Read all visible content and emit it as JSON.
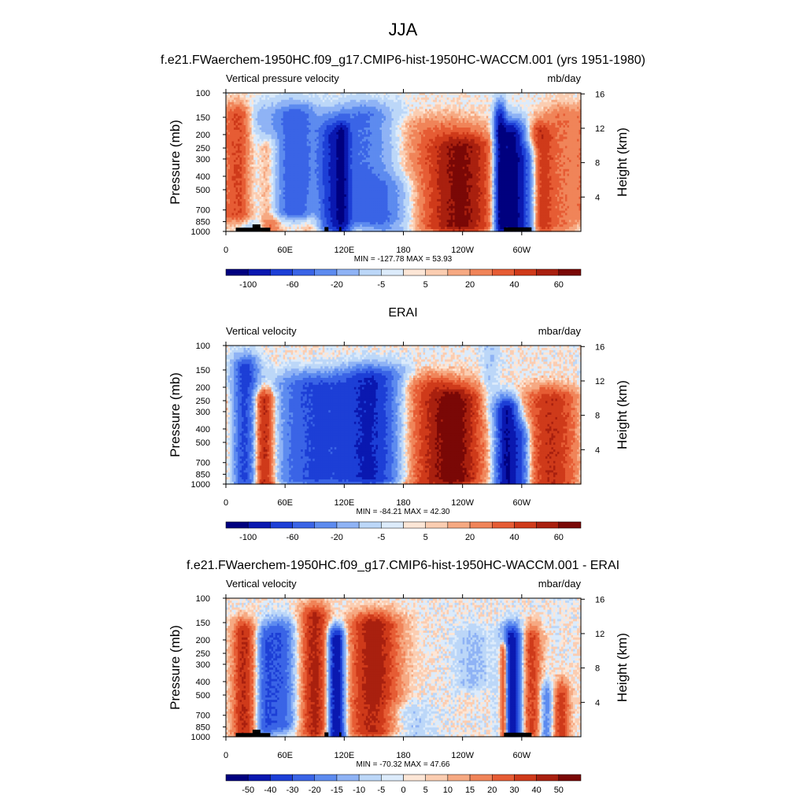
{
  "figure": {
    "title": "JJA",
    "colormap": [
      "#00007f",
      "#0a18b0",
      "#1d3fd6",
      "#3a64e6",
      "#5d8bef",
      "#8fb3f5",
      "#bcd7f8",
      "#dcebfb",
      "#fde6d6",
      "#fbcdb1",
      "#f6a982",
      "#f08459",
      "#e65c34",
      "#cf3a1a",
      "#a9200f",
      "#7a0806"
    ]
  },
  "chart_data": [
    {
      "type": "heatmap",
      "title": "f.e21.FWaerchem-1950HC.f09_g17.CMIP6-hist-1950HC-WACCM.001 (yrs 1951-1980)",
      "variable": "Vertical pressure velocity",
      "units": "mb/day",
      "ylabel": "Pressure (mb)",
      "y2label": "Height (km)",
      "stats": "MIN = -127.78  MAX =  53.93",
      "min": -127.78,
      "max": 53.93,
      "colorbar_labels": [
        "-100",
        "-60",
        "-20",
        "-5",
        "5",
        "20",
        "40",
        "60"
      ],
      "topography": true,
      "seed": 3,
      "features": [
        {
          "lon": 15,
          "pmin": 150,
          "pmax": 750,
          "w": 12,
          "a": 28
        },
        {
          "lon": 32,
          "pmin": 150,
          "pmax": 1000,
          "w": 10,
          "a": -20
        },
        {
          "lon": 42,
          "pmin": 250,
          "pmax": 950,
          "w": 9,
          "a": 26
        },
        {
          "lon": 70,
          "pmin": 150,
          "pmax": 700,
          "w": 16,
          "a": -55
        },
        {
          "lon": 105,
          "pmin": 200,
          "pmax": 900,
          "w": 8,
          "a": -55
        },
        {
          "lon": 118,
          "pmin": 200,
          "pmax": 950,
          "w": 6,
          "a": -70
        },
        {
          "lon": 140,
          "pmin": 150,
          "pmax": 800,
          "w": 22,
          "a": -45
        },
        {
          "lon": 165,
          "pmin": 500,
          "pmax": 1000,
          "w": 18,
          "a": -25
        },
        {
          "lon": 210,
          "pmin": 180,
          "pmax": 900,
          "w": 40,
          "a": 15
        },
        {
          "lon": 240,
          "pmin": 250,
          "pmax": 900,
          "w": 22,
          "a": 35
        },
        {
          "lon": 278,
          "pmin": 150,
          "pmax": 900,
          "w": 4,
          "a": -80
        },
        {
          "lon": 290,
          "pmin": 200,
          "pmax": 950,
          "w": 9,
          "a": -110
        },
        {
          "lon": 305,
          "pmin": 300,
          "pmax": 950,
          "w": 7,
          "a": -45
        },
        {
          "lon": 318,
          "pmin": 200,
          "pmax": 900,
          "w": 9,
          "a": 30
        },
        {
          "lon": 340,
          "pmin": 150,
          "pmax": 900,
          "w": 12,
          "a": 15
        },
        {
          "lon": 90,
          "pmin": 650,
          "pmax": 1000,
          "w": 8,
          "a": 8
        }
      ]
    },
    {
      "type": "heatmap",
      "title": "ERAI",
      "variable": "Vertical velocity",
      "units": "mbar/day",
      "ylabel": "Pressure (mb)",
      "y2label": "Height (km)",
      "stats": "MIN = -84.21  MAX =  42.30",
      "min": -84.21,
      "max": 42.3,
      "colorbar_labels": [
        "-100",
        "-60",
        "-20",
        "-5",
        "5",
        "20",
        "40",
        "60"
      ],
      "topography": false,
      "seed": 11,
      "features": [
        {
          "lon": 20,
          "pmin": 150,
          "pmax": 950,
          "w": 9,
          "a": -45
        },
        {
          "lon": 38,
          "pmin": 250,
          "pmax": 1000,
          "w": 9,
          "a": 38
        },
        {
          "lon": 90,
          "pmin": 200,
          "pmax": 900,
          "w": 28,
          "a": -40
        },
        {
          "lon": 150,
          "pmin": 180,
          "pmax": 900,
          "w": 22,
          "a": -55
        },
        {
          "lon": 200,
          "pmin": 200,
          "pmax": 1000,
          "w": 30,
          "a": 22
        },
        {
          "lon": 235,
          "pmin": 250,
          "pmax": 900,
          "w": 18,
          "a": 28
        },
        {
          "lon": 285,
          "pmin": 300,
          "pmax": 1000,
          "w": 8,
          "a": -70
        },
        {
          "lon": 300,
          "pmin": 450,
          "pmax": 1000,
          "w": 6,
          "a": -35
        },
        {
          "lon": 330,
          "pmin": 250,
          "pmax": 1000,
          "w": 20,
          "a": 25
        },
        {
          "lon": 268,
          "pmin": 100,
          "pmax": 300,
          "w": 6,
          "a": -8
        }
      ]
    },
    {
      "type": "heatmap",
      "title": "f.e21.FWaerchem-1950HC.f09_g17.CMIP6-hist-1950HC-WACCM.001 - ERAI",
      "variable": "Vertical velocity",
      "units": "mbar/day",
      "ylabel": "Pressure (mb)",
      "y2label": "Height (km)",
      "stats": "MIN = -70.32  MAX =  47.66",
      "min": -70.32,
      "max": 47.66,
      "colorbar_labels": [
        "-50",
        "-40",
        "-30",
        "-20",
        "-15",
        "-10",
        "-5",
        "0",
        "5",
        "10",
        "15",
        "20",
        "30",
        "40",
        "50"
      ],
      "topography": true,
      "seed": 23,
      "features": [
        {
          "lon": 18,
          "pmin": 180,
          "pmax": 900,
          "w": 8,
          "a": 30
        },
        {
          "lon": 40,
          "pmin": 200,
          "pmax": 900,
          "w": 6,
          "a": -22
        },
        {
          "lon": 55,
          "pmin": 180,
          "pmax": 800,
          "w": 10,
          "a": -30
        },
        {
          "lon": 90,
          "pmin": 140,
          "pmax": 900,
          "w": 10,
          "a": 32
        },
        {
          "lon": 112,
          "pmin": 200,
          "pmax": 1000,
          "w": 6,
          "a": -60
        },
        {
          "lon": 150,
          "pmin": 160,
          "pmax": 900,
          "w": 18,
          "a": 35
        },
        {
          "lon": 175,
          "pmin": 700,
          "pmax": 1000,
          "w": 20,
          "a": -10
        },
        {
          "lon": 282,
          "pmin": 250,
          "pmax": 950,
          "w": 3,
          "a": 45
        },
        {
          "lon": 290,
          "pmin": 200,
          "pmax": 950,
          "w": 7,
          "a": -55
        },
        {
          "lon": 310,
          "pmin": 200,
          "pmax": 900,
          "w": 7,
          "a": 25
        },
        {
          "lon": 325,
          "pmin": 500,
          "pmax": 1000,
          "w": 5,
          "a": -20
        },
        {
          "lon": 340,
          "pmin": 500,
          "pmax": 1000,
          "w": 6,
          "a": 25
        },
        {
          "lon": 250,
          "pmin": 200,
          "pmax": 400,
          "w": 12,
          "a": -8
        }
      ]
    }
  ],
  "axes": {
    "x_ticks": [
      {
        "lon": 0,
        "label": "0"
      },
      {
        "lon": 60,
        "label": "60E"
      },
      {
        "lon": 120,
        "label": "120E"
      },
      {
        "lon": 180,
        "label": "180"
      },
      {
        "lon": 240,
        "label": "120W"
      },
      {
        "lon": 300,
        "label": "60W"
      }
    ],
    "x_range": [
      0,
      360
    ],
    "y_ticks": [
      {
        "p": 100,
        "label": "100"
      },
      {
        "p": 150,
        "label": "150"
      },
      {
        "p": 200,
        "label": "200"
      },
      {
        "p": 250,
        "label": "250"
      },
      {
        "p": 300,
        "label": "300"
      },
      {
        "p": 400,
        "label": "400"
      },
      {
        "p": 500,
        "label": "500"
      },
      {
        "p": 700,
        "label": "700"
      },
      {
        "p": 850,
        "label": "850"
      },
      {
        "p": 1000,
        "label": "1000"
      }
    ],
    "y_range": [
      100,
      1000
    ],
    "y2_ticks": [
      {
        "km": 4,
        "label": "4"
      },
      {
        "km": 8,
        "label": "8"
      },
      {
        "km": 12,
        "label": "12"
      },
      {
        "km": 16,
        "label": "16"
      }
    ]
  },
  "topography": [
    {
      "lon": 10,
      "lon2": 45,
      "p": 940
    },
    {
      "lon": 27,
      "lon2": 35,
      "p": 890
    },
    {
      "lon": 100,
      "lon2": 104,
      "p": 930
    },
    {
      "lon": 115,
      "lon2": 117,
      "p": 930
    },
    {
      "lon": 282,
      "lon2": 310,
      "p": 935
    }
  ]
}
